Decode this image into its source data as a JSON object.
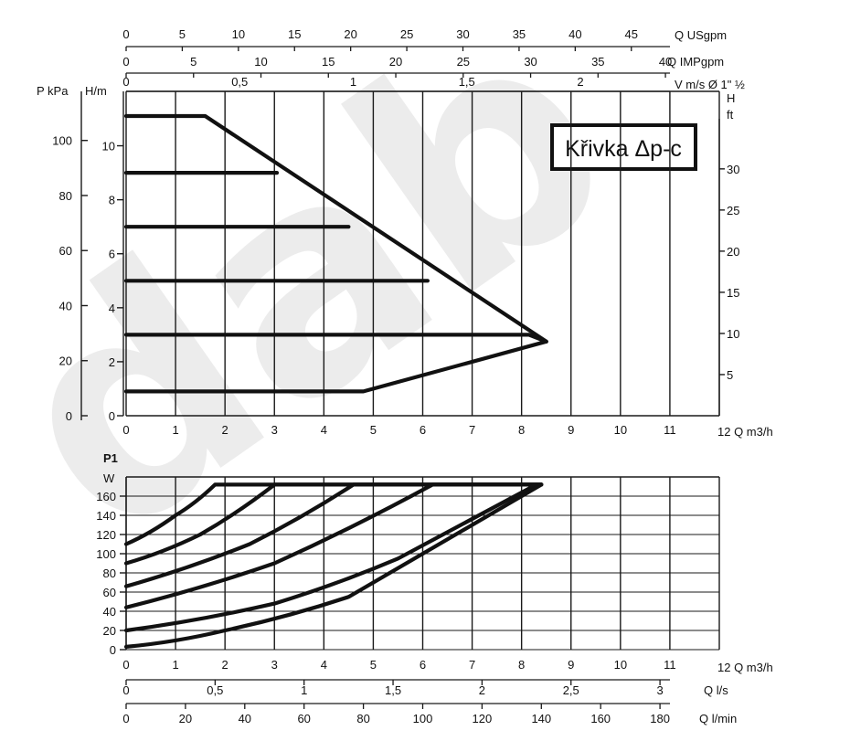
{
  "chart_data": [
    {
      "type": "line",
      "badge": "Křivka Δp-c",
      "x_unit": "12 Q m3/h",
      "x_ticks": [
        "0",
        "1",
        "2",
        "3",
        "4",
        "5",
        "6",
        "7",
        "8",
        "9",
        "10",
        "11"
      ],
      "xlim": [
        0,
        12
      ],
      "left_axis_pressure": {
        "label": "P kPa",
        "ticks": [
          "0",
          "20",
          "40",
          "60",
          "80",
          "100"
        ],
        "ylim": [
          0,
          110
        ]
      },
      "left_axis_head": {
        "label": "H/m",
        "ticks": [
          "0",
          "2",
          "4",
          "6",
          "8",
          "10"
        ],
        "ylim": [
          0,
          11
        ]
      },
      "right_axis_head_ft": {
        "label_top": "H",
        "label_unit": "ft",
        "ticks": [
          "5",
          "10",
          "15",
          "20",
          "25",
          "30"
        ]
      },
      "top_axes": [
        {
          "name": "Q USgpm",
          "ticks": [
            "0",
            "5",
            "10",
            "15",
            "20",
            "25",
            "30",
            "35",
            "40",
            "45"
          ]
        },
        {
          "name": "Q IMPgpm",
          "ticks": [
            "0",
            "5",
            "10",
            "15",
            "20",
            "25",
            "30",
            "35",
            "40"
          ]
        },
        {
          "name": "V m/s Ø 1\" ½",
          "ticks": [
            "0",
            "0,5",
            "1",
            "1,5",
            "2"
          ]
        }
      ],
      "series": [
        {
          "x": [
            0,
            1.6,
            8.5
          ],
          "y": [
            11.1,
            11.1,
            2.75
          ]
        },
        {
          "x": [
            0,
            3.05
          ],
          "y": [
            9.0,
            9.0
          ]
        },
        {
          "x": [
            0,
            4.5
          ],
          "y": [
            7.0,
            7.0
          ]
        },
        {
          "x": [
            0,
            6.1
          ],
          "y": [
            5.0,
            5.0
          ]
        },
        {
          "x": [
            0,
            8.15,
            8.5
          ],
          "y": [
            3.0,
            3.0,
            2.75
          ]
        },
        {
          "x": [
            0,
            4.8,
            8.5
          ],
          "y": [
            0.9,
            0.9,
            2.75
          ]
        }
      ]
    },
    {
      "type": "line",
      "y_label": "P1",
      "y_unit": "W",
      "y_ticks": [
        "0",
        "20",
        "40",
        "60",
        "80",
        "100",
        "120",
        "140",
        "160"
      ],
      "ylim": [
        0,
        180
      ],
      "x_unit": "12 Q m3/h",
      "x_ticks": [
        "0",
        "1",
        "2",
        "3",
        "4",
        "5",
        "6",
        "7",
        "8",
        "9",
        "10",
        "11"
      ],
      "xlim": [
        0,
        12
      ],
      "bottom_axes": [
        {
          "name": "Q l/s",
          "ticks": [
            "0",
            "0,5",
            "1",
            "1,5",
            "2",
            "2,5",
            "3"
          ]
        },
        {
          "name": "Q l/min",
          "ticks": [
            "0",
            "20",
            "40",
            "60",
            "80",
            "100",
            "120",
            "140",
            "160",
            "180"
          ]
        }
      ],
      "series": [
        {
          "x": [
            0,
            1.0,
            1.8,
            8.4
          ],
          "y": [
            110,
            140,
            172,
            172
          ]
        },
        {
          "x": [
            0,
            1.5,
            3.0,
            8.4
          ],
          "y": [
            90,
            120,
            172,
            172
          ]
        },
        {
          "x": [
            0,
            2.5,
            4.6,
            8.4
          ],
          "y": [
            66,
            110,
            172,
            172
          ]
        },
        {
          "x": [
            0,
            3.0,
            6.2,
            8.4
          ],
          "y": [
            44,
            90,
            172,
            172
          ]
        },
        {
          "x": [
            0,
            3.0,
            5.5,
            8.3
          ],
          "y": [
            20,
            48,
            95,
            172
          ]
        },
        {
          "x": [
            0,
            2.0,
            4.5,
            8.4
          ],
          "y": [
            3,
            20,
            55,
            172
          ]
        }
      ]
    }
  ],
  "colors": {
    "line": "#111111",
    "grid": "#1a1a1a",
    "watermark": "#000000"
  }
}
